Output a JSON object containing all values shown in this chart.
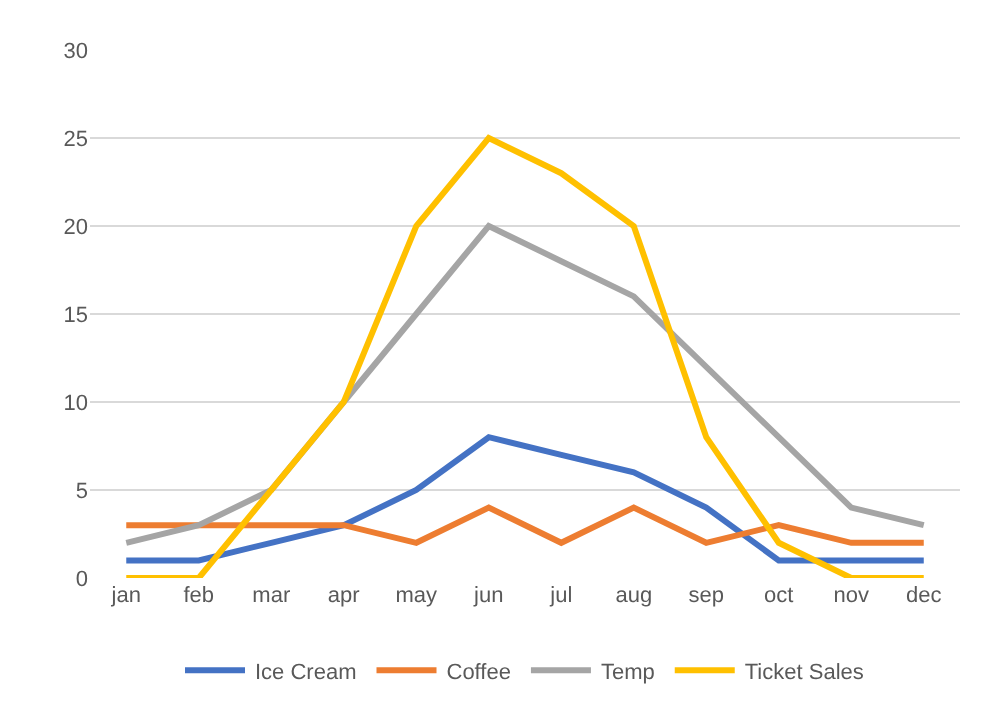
{
  "chart_data": {
    "type": "line",
    "categories": [
      "jan",
      "feb",
      "mar",
      "apr",
      "may",
      "jun",
      "jul",
      "aug",
      "sep",
      "oct",
      "nov",
      "dec"
    ],
    "series": [
      {
        "name": "Ice Cream",
        "color": "#4472c4",
        "values": [
          1,
          1,
          2,
          3,
          5,
          8,
          7,
          6,
          4,
          1,
          1,
          1
        ]
      },
      {
        "name": "Coffee",
        "color": "#ed7d31",
        "values": [
          3,
          3,
          3,
          3,
          2,
          4,
          2,
          4,
          2,
          3,
          2,
          2
        ]
      },
      {
        "name": "Temp",
        "color": "#a5a5a5",
        "values": [
          2,
          3,
          5,
          10,
          15,
          20,
          18,
          16,
          12,
          8,
          4,
          3
        ]
      },
      {
        "name": "Ticket Sales",
        "color": "#ffc000",
        "values": [
          0,
          0,
          5,
          10,
          20,
          25,
          23,
          20,
          8,
          2,
          0,
          0
        ]
      }
    ],
    "ylim": [
      0,
      30
    ],
    "yticks": [
      0,
      5,
      10,
      15,
      20,
      25,
      30
    ],
    "grid": "y",
    "legend": "bottom",
    "marker": "none",
    "line_style": "solid"
  }
}
